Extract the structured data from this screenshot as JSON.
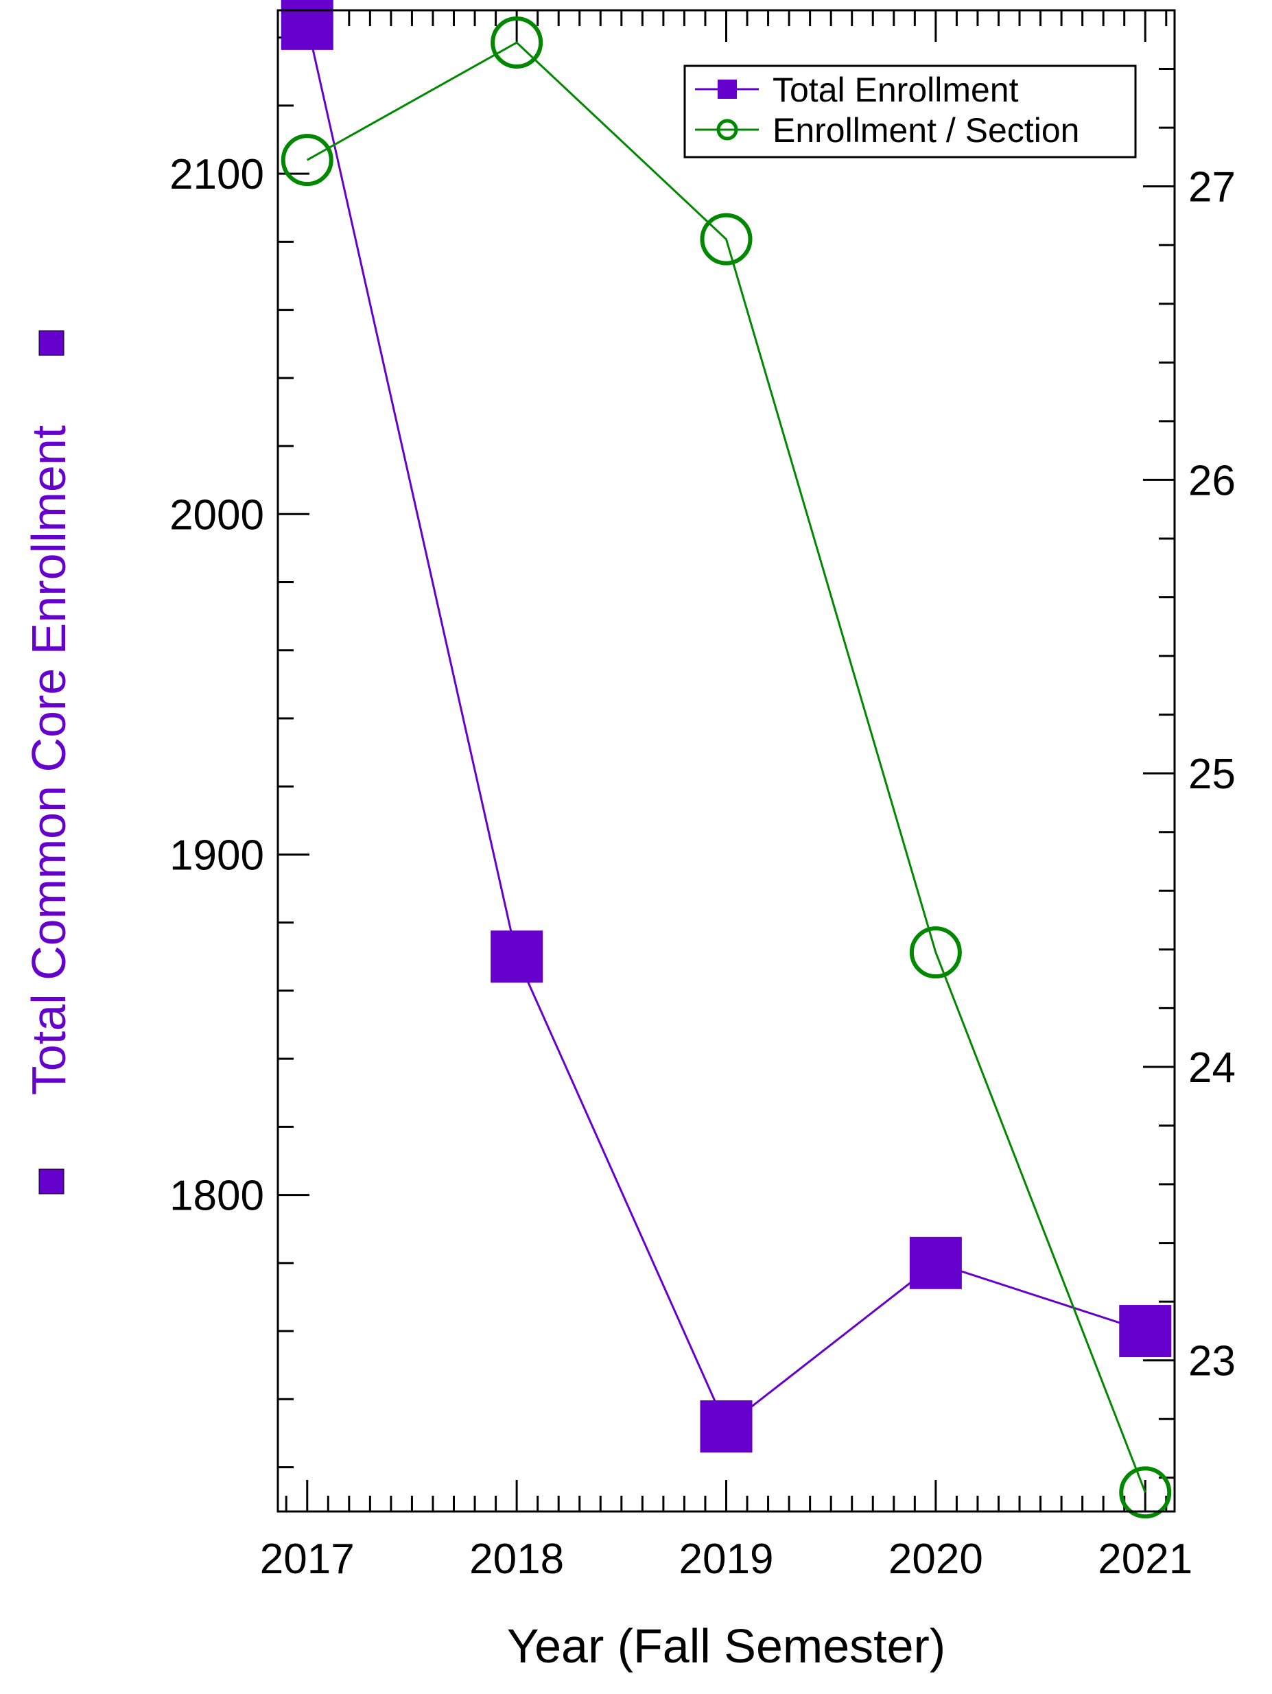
{
  "chart_data": {
    "type": "line",
    "xlabel": "Year (Fall Semester)",
    "ylabel_left": "Total Common Core Enrollment",
    "x": [
      2017,
      2018,
      2019,
      2020,
      2021
    ],
    "x_ticks": [
      "2017",
      "2018",
      "2019",
      "2020",
      "2021"
    ],
    "xlim": [
      2016.86,
      2021.14
    ],
    "y_left": {
      "lim": [
        1707,
        2148
      ],
      "ticks": [
        1800,
        1900,
        2000,
        2100
      ],
      "tick_labels": [
        "1800",
        "1900",
        "2000",
        "2100"
      ],
      "minor_step": 20
    },
    "y_right": {
      "lim": [
        22.485,
        27.6
      ],
      "ticks": [
        23,
        24,
        25,
        26,
        27
      ],
      "tick_labels": [
        "23",
        "24",
        "25",
        "26",
        "27"
      ],
      "minor_step": 0.2
    },
    "series": [
      {
        "name": "Total Enrollment",
        "axis": "left",
        "marker": "filled-square",
        "color": "#6600CC",
        "values": [
          2144,
          1870,
          1732,
          1780,
          1760
        ]
      },
      {
        "name": "Enrollment / Section",
        "axis": "right",
        "marker": "open-circle",
        "color": "#008800",
        "values": [
          27.09,
          27.49,
          26.82,
          24.39,
          22.55
        ]
      }
    ],
    "legend": {
      "position": "top-right"
    },
    "grid": false
  }
}
